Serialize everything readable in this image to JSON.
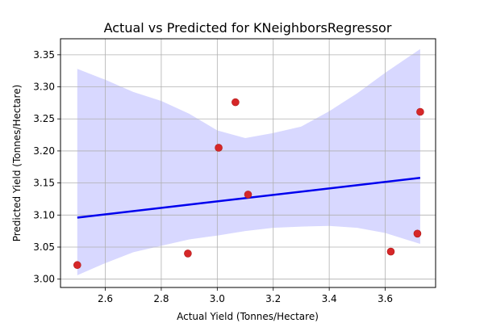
{
  "chart_data": {
    "type": "scatter",
    "title": "Actual vs Predicted for KNeighborsRegressor",
    "xlabel": "Actual Yield (Tonnes/Hectare)",
    "ylabel": "Predicted Yield (Tonnes/Hectare)",
    "xlim": [
      2.44,
      3.78
    ],
    "ylim": [
      2.987,
      3.375
    ],
    "xticks": [
      2.6,
      2.8,
      3.0,
      3.2,
      3.4,
      3.6
    ],
    "yticks": [
      3.0,
      3.05,
      3.1,
      3.15,
      3.2,
      3.25,
      3.3,
      3.35
    ],
    "xtick_labels": [
      "2.6",
      "2.8",
      "3.0",
      "3.2",
      "3.4",
      "3.6"
    ],
    "ytick_labels": [
      "3.00",
      "3.05",
      "3.10",
      "3.15",
      "3.20",
      "3.25",
      "3.30",
      "3.35"
    ],
    "grid": true,
    "points": [
      {
        "x": 2.5,
        "y": 3.022
      },
      {
        "x": 2.895,
        "y": 3.04
      },
      {
        "x": 3.005,
        "y": 3.205
      },
      {
        "x": 3.065,
        "y": 3.276
      },
      {
        "x": 3.11,
        "y": 3.132
      },
      {
        "x": 3.62,
        "y": 3.043
      },
      {
        "x": 3.715,
        "y": 3.071
      },
      {
        "x": 3.725,
        "y": 3.261
      }
    ],
    "regression_line": {
      "x": [
        2.5,
        3.725
      ],
      "y": [
        3.096,
        3.158
      ]
    },
    "confidence_band": {
      "x": [
        2.5,
        2.6,
        2.7,
        2.8,
        2.9,
        3.0,
        3.1,
        3.2,
        3.3,
        3.4,
        3.5,
        3.6,
        3.725
      ],
      "upper": [
        3.328,
        3.311,
        3.292,
        3.278,
        3.258,
        3.232,
        3.22,
        3.228,
        3.238,
        3.262,
        3.29,
        3.322,
        3.359
      ],
      "lower": [
        3.006,
        3.025,
        3.042,
        3.052,
        3.062,
        3.068,
        3.075,
        3.08,
        3.082,
        3.083,
        3.08,
        3.072,
        3.055
      ]
    },
    "colors": {
      "points": "#d62728",
      "points_edge": "#b01c1c",
      "line": "#0000ee",
      "band": "#d8d8ff",
      "grid": "#b0b0b0"
    }
  }
}
